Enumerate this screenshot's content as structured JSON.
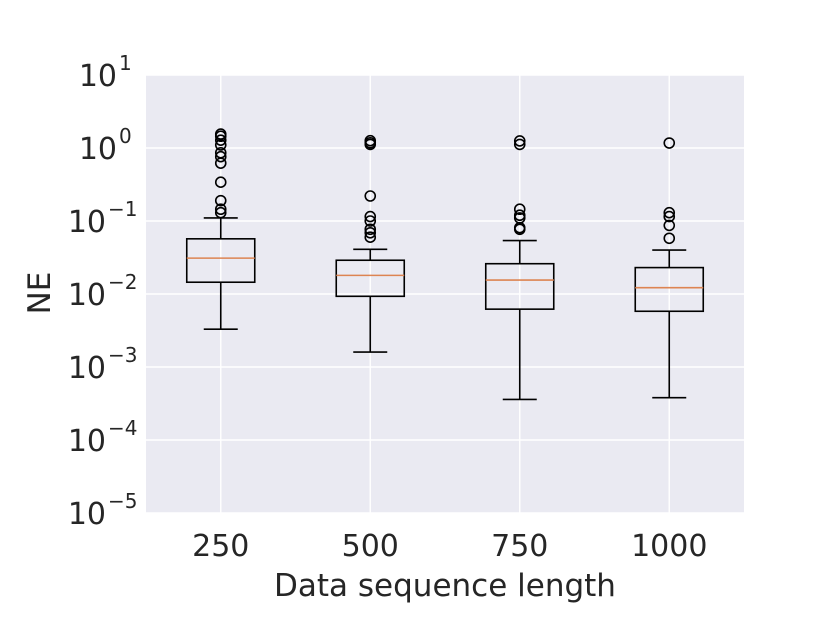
{
  "chart_data": {
    "type": "boxplot",
    "xlabel": "Data sequence length",
    "ylabel": "NE",
    "yscale": "log",
    "ylim": [
      1e-05,
      10
    ],
    "grid": true,
    "categories": [
      "250",
      "500",
      "750",
      "1000"
    ],
    "y_ticks": [
      {
        "base": "10",
        "exp": "1"
      },
      {
        "base": "10",
        "exp": "0"
      },
      {
        "base": "10",
        "exp": "−1"
      },
      {
        "base": "10",
        "exp": "−2"
      },
      {
        "base": "10",
        "exp": "−3"
      },
      {
        "base": "10",
        "exp": "−4"
      },
      {
        "base": "10",
        "exp": "−5"
      }
    ],
    "boxes": [
      {
        "category": "250",
        "whisker_low": 0.0033,
        "q1": 0.0145,
        "median": 0.031,
        "q3": 0.057,
        "whisker_high": 0.11,
        "outliers": [
          0.13,
          0.145,
          0.19,
          0.34,
          0.62,
          0.76,
          0.86,
          1.1,
          1.28,
          1.45,
          1.55
        ]
      },
      {
        "category": "500",
        "whisker_low": 0.0016,
        "q1": 0.0093,
        "median": 0.018,
        "q3": 0.029,
        "whisker_high": 0.041,
        "outliers": [
          0.06,
          0.069,
          0.077,
          0.1,
          0.115,
          0.22,
          1.12,
          1.18,
          1.26
        ]
      },
      {
        "category": "750",
        "whisker_low": 0.00036,
        "q1": 0.0062,
        "median": 0.0155,
        "q3": 0.026,
        "whisker_high": 0.054,
        "outliers": [
          0.077,
          0.081,
          0.11,
          0.12,
          0.145,
          1.12,
          1.25
        ]
      },
      {
        "category": "1000",
        "whisker_low": 0.00038,
        "q1": 0.0058,
        "median": 0.0122,
        "q3": 0.023,
        "whisker_high": 0.04,
        "outliers": [
          0.058,
          0.087,
          0.115,
          0.13,
          1.17
        ]
      }
    ],
    "colors": {
      "background": "#eaeaf2",
      "grid": "#ffffff",
      "box": "#000000",
      "median": "#dd8452",
      "text": "#262626"
    }
  }
}
